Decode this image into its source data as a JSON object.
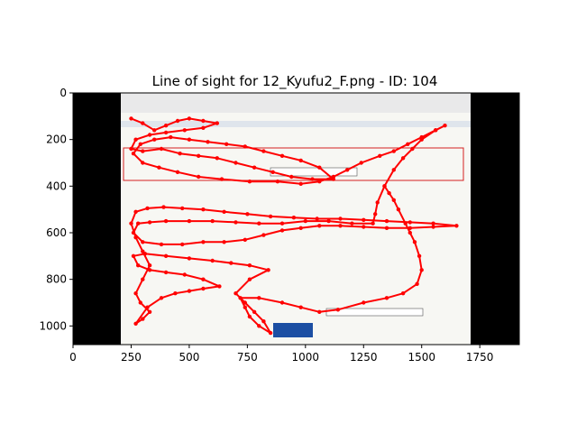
{
  "chart_data": {
    "type": "scatter",
    "title": "Line of sight for 12_Kyufu2_F.png - ID: 104",
    "xlabel": "",
    "ylabel": "",
    "xlim": [
      0,
      1920
    ],
    "ylim": [
      1080,
      0
    ],
    "x_ticks": [
      0,
      250,
      500,
      750,
      1000,
      1250,
      1500,
      1750
    ],
    "y_ticks": [
      0,
      200,
      400,
      600,
      800,
      1000
    ],
    "x_tick_labels": [
      "0",
      "250",
      "500",
      "750",
      "1000",
      "1250",
      "1500",
      "1750"
    ],
    "y_tick_labels": [
      "0",
      "200",
      "400",
      "600",
      "800",
      "1000"
    ],
    "grid": false,
    "background_image": "webpage-screenshot-with-black-side-bars",
    "line_color": "#ff0000",
    "series": [
      {
        "points": [
          [
            250,
            110
          ],
          [
            300,
            130
          ],
          [
            350,
            160
          ],
          [
            400,
            140
          ],
          [
            450,
            120
          ],
          [
            500,
            110
          ],
          [
            560,
            120
          ],
          [
            620,
            130
          ],
          [
            560,
            150
          ],
          [
            480,
            160
          ],
          [
            400,
            170
          ],
          [
            330,
            180
          ],
          [
            270,
            200
          ],
          [
            250,
            240
          ],
          [
            300,
            250
          ],
          [
            380,
            240
          ],
          [
            460,
            260
          ],
          [
            540,
            270
          ],
          [
            620,
            280
          ],
          [
            700,
            300
          ],
          [
            780,
            320
          ],
          [
            860,
            340
          ],
          [
            940,
            360
          ],
          [
            1030,
            370
          ],
          [
            1120,
            370
          ],
          [
            1060,
            320
          ],
          [
            980,
            290
          ],
          [
            900,
            270
          ],
          [
            820,
            250
          ],
          [
            740,
            230
          ],
          [
            660,
            220
          ],
          [
            580,
            210
          ],
          [
            500,
            200
          ],
          [
            420,
            190
          ],
          [
            350,
            200
          ],
          [
            290,
            220
          ],
          [
            260,
            260
          ],
          [
            300,
            300
          ],
          [
            370,
            320
          ],
          [
            450,
            340
          ],
          [
            540,
            360
          ],
          [
            640,
            370
          ],
          [
            760,
            380
          ],
          [
            880,
            380
          ],
          [
            980,
            390
          ],
          [
            1060,
            380
          ],
          [
            1120,
            360
          ],
          [
            1180,
            330
          ],
          [
            1240,
            300
          ],
          [
            1320,
            270
          ],
          [
            1380,
            250
          ],
          [
            1440,
            220
          ],
          [
            1500,
            190
          ],
          [
            1560,
            160
          ],
          [
            1600,
            140
          ],
          [
            1560,
            160
          ],
          [
            1500,
            200
          ],
          [
            1460,
            240
          ],
          [
            1420,
            280
          ],
          [
            1380,
            330
          ],
          [
            1340,
            400
          ],
          [
            1310,
            470
          ],
          [
            1300,
            520
          ],
          [
            1290,
            560
          ],
          [
            1200,
            560
          ],
          [
            1100,
            550
          ],
          [
            1000,
            550
          ],
          [
            900,
            560
          ],
          [
            800,
            560
          ],
          [
            700,
            555
          ],
          [
            600,
            550
          ],
          [
            500,
            550
          ],
          [
            400,
            550
          ],
          [
            330,
            555
          ],
          [
            280,
            560
          ],
          [
            260,
            600
          ],
          [
            300,
            640
          ],
          [
            380,
            650
          ],
          [
            470,
            650
          ],
          [
            560,
            640
          ],
          [
            650,
            640
          ],
          [
            740,
            630
          ],
          [
            820,
            610
          ],
          [
            900,
            590
          ],
          [
            980,
            580
          ],
          [
            1060,
            570
          ],
          [
            1150,
            570
          ],
          [
            1250,
            575
          ],
          [
            1350,
            580
          ],
          [
            1450,
            580
          ],
          [
            1550,
            575
          ],
          [
            1650,
            570
          ],
          [
            1550,
            560
          ],
          [
            1450,
            555
          ],
          [
            1350,
            550
          ],
          [
            1250,
            545
          ],
          [
            1150,
            540
          ],
          [
            1050,
            540
          ],
          [
            950,
            535
          ],
          [
            850,
            530
          ],
          [
            750,
            520
          ],
          [
            650,
            510
          ],
          [
            560,
            500
          ],
          [
            470,
            495
          ],
          [
            390,
            490
          ],
          [
            320,
            495
          ],
          [
            270,
            510
          ],
          [
            250,
            560
          ],
          [
            270,
            620
          ],
          [
            300,
            680
          ],
          [
            330,
            740
          ],
          [
            300,
            800
          ],
          [
            270,
            860
          ],
          [
            290,
            900
          ],
          [
            330,
            940
          ],
          [
            300,
            970
          ],
          [
            270,
            990
          ],
          [
            320,
            920
          ],
          [
            380,
            880
          ],
          [
            440,
            860
          ],
          [
            500,
            850
          ],
          [
            560,
            840
          ],
          [
            630,
            830
          ],
          [
            560,
            800
          ],
          [
            480,
            780
          ],
          [
            400,
            770
          ],
          [
            330,
            760
          ],
          [
            280,
            740
          ],
          [
            260,
            700
          ],
          [
            310,
            690
          ],
          [
            400,
            700
          ],
          [
            500,
            710
          ],
          [
            600,
            720
          ],
          [
            680,
            730
          ],
          [
            760,
            740
          ],
          [
            840,
            760
          ],
          [
            760,
            800
          ],
          [
            700,
            860
          ],
          [
            740,
            900
          ],
          [
            780,
            940
          ],
          [
            820,
            980
          ],
          [
            850,
            1030
          ],
          [
            800,
            1000
          ],
          [
            760,
            960
          ],
          [
            740,
            920
          ],
          [
            720,
            880
          ],
          [
            800,
            880
          ],
          [
            900,
            900
          ],
          [
            980,
            920
          ],
          [
            1060,
            940
          ],
          [
            1140,
            930
          ],
          [
            1250,
            900
          ],
          [
            1350,
            880
          ],
          [
            1420,
            860
          ],
          [
            1480,
            820
          ],
          [
            1500,
            760
          ],
          [
            1490,
            700
          ],
          [
            1470,
            640
          ],
          [
            1450,
            600
          ],
          [
            1430,
            560
          ],
          [
            1400,
            500
          ],
          [
            1380,
            460
          ],
          [
            1360,
            430
          ],
          [
            1340,
            400
          ]
        ]
      }
    ]
  }
}
